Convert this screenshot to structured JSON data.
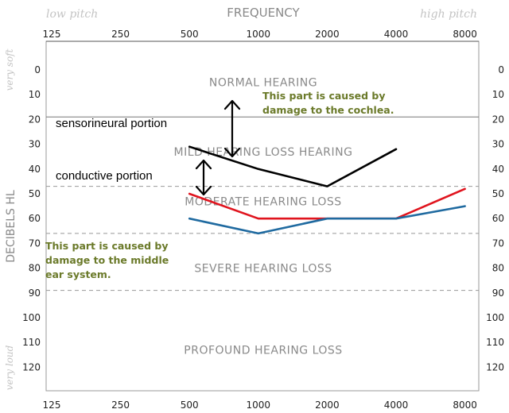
{
  "chart_data": {
    "type": "line",
    "title": "FREQUENCY",
    "corner_left": "low pitch",
    "corner_right": "high pitch",
    "ylabel": "DECIBELS HL",
    "ylabel_top": "very soft",
    "ylabel_bottom": "very loud",
    "x_ticks": [
      "125",
      "250",
      "500",
      "1000",
      "2000",
      "4000",
      "8000"
    ],
    "y_ticks": [
      0,
      10,
      20,
      30,
      40,
      50,
      60,
      70,
      80,
      90,
      100,
      110,
      120
    ],
    "ylim": [
      -8,
      130
    ],
    "y_inverted": true,
    "regions": [
      {
        "label": "NORMAL HEARING",
        "y": 5
      },
      {
        "label": "MILD HEARING LOSS HEARING",
        "y": 33
      },
      {
        "label": "MODERATE HEARING LOSS",
        "y": 53
      },
      {
        "label": "SEVERE HEARING LOSS",
        "y": 80
      },
      {
        "label": "PROFOUND HEARING LOSS",
        "y": 113
      }
    ],
    "boundaries": [
      {
        "y": 19,
        "style": "solid"
      },
      {
        "y": 47,
        "style": "dashed"
      },
      {
        "y": 66,
        "style": "dashed"
      },
      {
        "y": 89,
        "style": "dashed"
      }
    ],
    "series": [
      {
        "color": "#000000",
        "points": [
          [
            500,
            31
          ],
          [
            1000,
            40
          ],
          [
            2000,
            47
          ],
          [
            4000,
            32
          ]
        ]
      },
      {
        "color": "#e0141e",
        "points": [
          [
            500,
            50
          ],
          [
            1000,
            60
          ],
          [
            2000,
            60
          ],
          [
            4000,
            60
          ],
          [
            8000,
            48
          ]
        ]
      },
      {
        "color": "#1f6aa0",
        "points": [
          [
            500,
            60
          ],
          [
            1000,
            66
          ],
          [
            2000,
            60
          ],
          [
            4000,
            60
          ],
          [
            8000,
            55
          ]
        ]
      }
    ],
    "annotations": {
      "sensorineural_label": "sensorineural portion",
      "conductive_label": "conductive portion",
      "cochlea_note": [
        "This part is caused by",
        "damage to the cochlea."
      ],
      "middle_ear_note": [
        "This part is caused by",
        "damage to the middle",
        "ear system."
      ]
    }
  }
}
